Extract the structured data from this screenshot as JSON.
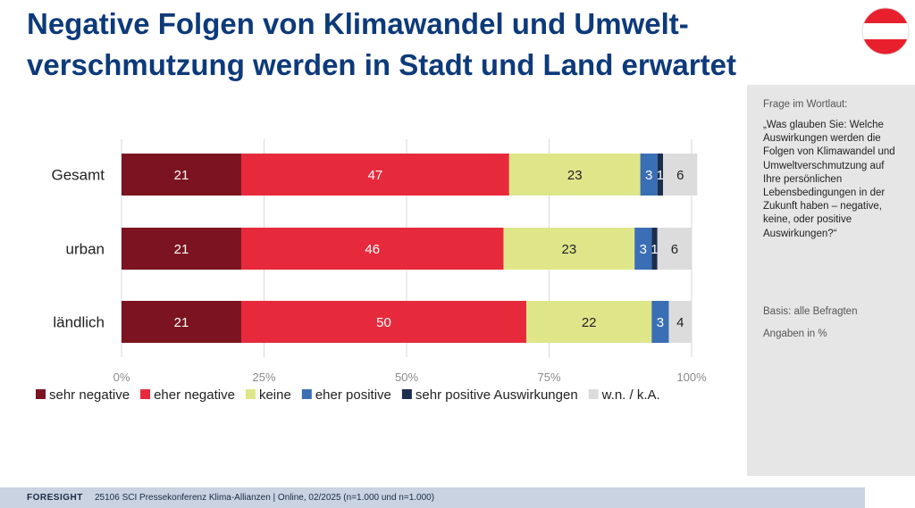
{
  "header": {
    "title": "Negative Folgen von Klimawandel und Umwelt-verschmutzung werden in Stadt und Land erwartet"
  },
  "sidebar": {
    "label": "Frage im Wortlaut:",
    "question": "„Was glauben Sie: Welche Auswirkungen werden die Folgen von Klimawandel und Umweltverschmutzung auf Ihre persönlichen Lebensbedingungen in der Zukunft haben – negative, keine, oder positive Auswirkungen?“",
    "basis": "Basis: alle Befragten",
    "units": "Angaben in %"
  },
  "footer": {
    "brand": "FORESIGHT",
    "text": "25106 SCI Pressekonferenz Klima-Allianzen | Online, 02/2025 (n=1.000 und n=1.000)"
  },
  "chart_data": {
    "type": "bar",
    "orientation": "horizontal",
    "stacked": true,
    "categories": [
      "Gesamt",
      "urban",
      "ländlich"
    ],
    "series": [
      {
        "name": "sehr negative",
        "color": "#7b1420",
        "values": [
          21,
          21,
          21
        ]
      },
      {
        "name": "eher negative",
        "color": "#e62a3c",
        "values": [
          47,
          46,
          50
        ]
      },
      {
        "name": "keine",
        "color": "#dfe68a",
        "values": [
          23,
          23,
          22
        ]
      },
      {
        "name": "eher positive",
        "color": "#3a6eb5",
        "values": [
          3,
          3,
          3
        ]
      },
      {
        "name": "sehr positive Auswirkungen",
        "color": "#1b2e4e",
        "values": [
          1,
          1,
          0
        ]
      },
      {
        "name": "w.n. / k.A.",
        "color": "#dcdcdc",
        "values": [
          6,
          6,
          4
        ]
      }
    ],
    "xticks": [
      "0%",
      "25%",
      "50%",
      "75%",
      "100%"
    ],
    "xlim": [
      0,
      100
    ],
    "grid": true,
    "legend": "bottom"
  }
}
